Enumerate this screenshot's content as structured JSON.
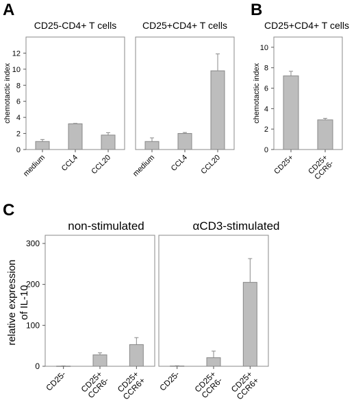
{
  "panels": {
    "A": {
      "letter": "A",
      "title_left": "CD25-CD4+ T cells",
      "title_right": "CD25+CD4+ T cells",
      "ylabel": "chemotactic index"
    },
    "B": {
      "letter": "B",
      "title": "CD25+CD4+ T cells",
      "ylabel": "chemotactic index"
    },
    "C": {
      "letter": "C",
      "title_left": "non-stimulated",
      "title_right": "αCD3-stimulated",
      "ylabel_line1": "relative expression",
      "ylabel_line2": "of IL-10"
    }
  },
  "chart_data": [
    {
      "type": "bar",
      "panel": "A",
      "title": "CD25-CD4+ T cells",
      "ylabel": "chemotactic index",
      "ylim": [
        0,
        14
      ],
      "yticks": [
        0,
        2,
        4,
        6,
        8,
        10,
        12
      ],
      "categories": [
        "medium",
        "CCL4",
        "CCL20"
      ],
      "values": [
        1.0,
        3.2,
        1.8
      ],
      "errors": [
        0.25,
        0.05,
        0.3
      ],
      "color": "#bdbdbd"
    },
    {
      "type": "bar",
      "panel": "A",
      "title": "CD25+CD4+ T cells",
      "ylim": [
        0,
        14
      ],
      "categories": [
        "medium",
        "CCL4",
        "CCL20"
      ],
      "values": [
        1.0,
        2.0,
        9.8
      ],
      "errors": [
        0.45,
        0.12,
        2.1
      ],
      "color": "#bdbdbd"
    },
    {
      "type": "bar",
      "panel": "B",
      "title": "CD25+CD4+ T cells",
      "ylabel": "chemotactic index",
      "ylim": [
        0,
        11
      ],
      "yticks": [
        0,
        2,
        4,
        6,
        8,
        10
      ],
      "categories": [
        [
          "CD25+"
        ],
        [
          "CD25+",
          "CCR6-"
        ]
      ],
      "values": [
        7.2,
        2.9
      ],
      "errors": [
        0.45,
        0.15
      ],
      "color": "#bdbdbd"
    },
    {
      "type": "bar",
      "panel": "C",
      "title": "non-stimulated",
      "ylabel": "relative expression of IL-10",
      "ylim": [
        0,
        320
      ],
      "yticks": [
        0,
        100,
        200,
        300
      ],
      "categories": [
        [
          "CD25-"
        ],
        [
          "CD25+",
          "CCR6-"
        ],
        [
          "CD25+",
          "CCR6+"
        ]
      ],
      "values": [
        0.5,
        28,
        53
      ],
      "errors": [
        0.5,
        5,
        17
      ],
      "color": "#bdbdbd"
    },
    {
      "type": "bar",
      "panel": "C",
      "title": "αCD3-stimulated",
      "ylim": [
        0,
        320
      ],
      "categories": [
        [
          "CD25-"
        ],
        [
          "CD25+",
          "CCR6-"
        ],
        [
          "CD25+",
          "CCR6+"
        ]
      ],
      "values": [
        0.8,
        21,
        205
      ],
      "errors": [
        0.5,
        16,
        58
      ],
      "color": "#bdbdbd"
    }
  ]
}
